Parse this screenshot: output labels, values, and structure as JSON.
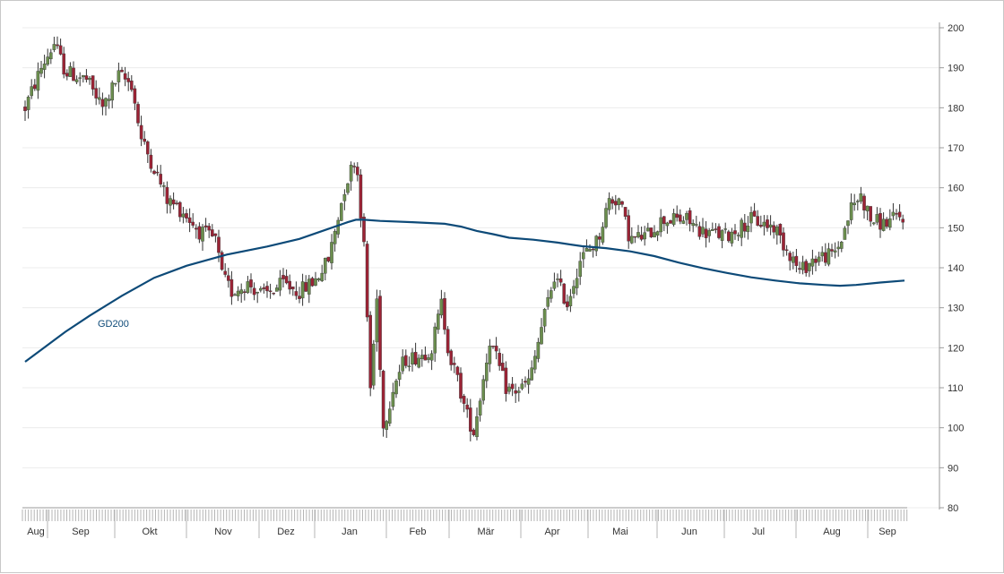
{
  "chart_data": {
    "type": "candlestick",
    "x_axis": {
      "month_labels": [
        "Aug",
        "Sep",
        "Okt",
        "Nov",
        "Dez",
        "Jan",
        "Feb",
        "Mär",
        "Apr",
        "Mai",
        "Jun",
        "Jul",
        "Aug",
        "Sep"
      ]
    },
    "y_axis": {
      "ticks": [
        80,
        90,
        100,
        110,
        120,
        130,
        140,
        150,
        160,
        170,
        180,
        190,
        200
      ],
      "ylim": [
        80,
        200
      ],
      "position": "right"
    },
    "grid": true,
    "moving_average": {
      "label": "GD200",
      "color": "#0d4a78",
      "points": [
        [
          0,
          116.5
        ],
        [
          10,
          119.5
        ],
        [
          25,
          124
        ],
        [
          40,
          128
        ],
        [
          60,
          133
        ],
        [
          80,
          137.5
        ],
        [
          100,
          140.5
        ],
        [
          125,
          143.3
        ],
        [
          150,
          145.3
        ],
        [
          170,
          147.2
        ],
        [
          180,
          148.6
        ],
        [
          190,
          150
        ],
        [
          200,
          151.4
        ],
        [
          205,
          152
        ],
        [
          210,
          152
        ],
        [
          220,
          151.7
        ],
        [
          240,
          151.4
        ],
        [
          260,
          151
        ],
        [
          270,
          150.3
        ],
        [
          280,
          149.2
        ],
        [
          290,
          148.4
        ],
        [
          300,
          147.5
        ],
        [
          315,
          147
        ],
        [
          330,
          146.3
        ],
        [
          345,
          145.4
        ],
        [
          360,
          144.9
        ],
        [
          375,
          144.1
        ],
        [
          390,
          142.9
        ],
        [
          405,
          141.3
        ],
        [
          420,
          139.9
        ],
        [
          435,
          138.7
        ],
        [
          450,
          137.6
        ],
        [
          465,
          136.8
        ],
        [
          480,
          136.1
        ],
        [
          495,
          135.7
        ],
        [
          505,
          135.5
        ],
        [
          515,
          135.7
        ],
        [
          530,
          136.3
        ],
        [
          545,
          136.8
        ]
      ]
    },
    "candles": {
      "count": 546,
      "colors": {
        "up": "#6b8e4e",
        "down": "#9b2335",
        "wick": "#333333"
      },
      "keypoints": [
        [
          0,
          180
        ],
        [
          10,
          190
        ],
        [
          18,
          196
        ],
        [
          25,
          189
        ],
        [
          38,
          187
        ],
        [
          48,
          180
        ],
        [
          58,
          188
        ],
        [
          66,
          186
        ],
        [
          72,
          172
        ],
        [
          80,
          165
        ],
        [
          88,
          157
        ],
        [
          98,
          154
        ],
        [
          108,
          149
        ],
        [
          118,
          147
        ],
        [
          122,
          138
        ],
        [
          128,
          134
        ],
        [
          138,
          136
        ],
        [
          148,
          133
        ],
        [
          160,
          136
        ],
        [
          170,
          134
        ],
        [
          180,
          137
        ],
        [
          188,
          142
        ],
        [
          198,
          160
        ],
        [
          205,
          168
        ],
        [
          210,
          145
        ],
        [
          214,
          110
        ],
        [
          218,
          132
        ],
        [
          222,
          100
        ],
        [
          228,
          110
        ],
        [
          235,
          117
        ],
        [
          245,
          118
        ],
        [
          252,
          120
        ],
        [
          258,
          131
        ],
        [
          263,
          118
        ],
        [
          268,
          112
        ],
        [
          273,
          104
        ],
        [
          278,
          99
        ],
        [
          283,
          110
        ],
        [
          288,
          122
        ],
        [
          293,
          116
        ],
        [
          298,
          110
        ],
        [
          303,
          109
        ],
        [
          308,
          110
        ],
        [
          313,
          112
        ],
        [
          320,
          125
        ],
        [
          328,
          138
        ],
        [
          336,
          131
        ],
        [
          344,
          142
        ],
        [
          355,
          147
        ],
        [
          362,
          157
        ],
        [
          368,
          157
        ],
        [
          375,
          147
        ],
        [
          385,
          148
        ],
        [
          395,
          152
        ],
        [
          410,
          152
        ],
        [
          420,
          149
        ],
        [
          435,
          148
        ],
        [
          450,
          152
        ],
        [
          465,
          150
        ],
        [
          470,
          146
        ],
        [
          475,
          143
        ],
        [
          480,
          139
        ],
        [
          488,
          142
        ],
        [
          495,
          143
        ],
        [
          500,
          143
        ],
        [
          505,
          146
        ],
        [
          512,
          155
        ],
        [
          518,
          158
        ],
        [
          524,
          152
        ],
        [
          532,
          151
        ],
        [
          537,
          152
        ],
        [
          545,
          153
        ]
      ]
    }
  }
}
